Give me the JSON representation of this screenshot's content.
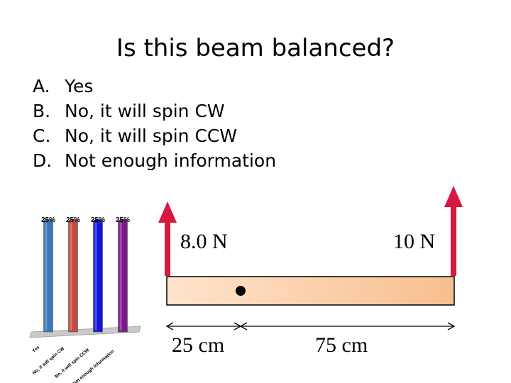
{
  "slide": {
    "title": "Is this beam balanced?",
    "options": [
      {
        "letter": "A.",
        "text": "Yes"
      },
      {
        "letter": "B.",
        "text": "No, it will spin CW"
      },
      {
        "letter": "C.",
        "text": "No, it will spin CCW"
      },
      {
        "letter": "D.",
        "text": "Not enough information"
      }
    ]
  },
  "chart_data": {
    "type": "bar",
    "categories": [
      "Yes",
      "No, it will spin CW",
      "No, it will spin CCW",
      "Not enough information"
    ],
    "values": [
      25,
      25,
      25,
      25
    ],
    "value_labels": [
      "25%",
      "25%",
      "25%",
      "25%"
    ],
    "ylim": [
      0,
      25
    ],
    "colors": [
      "#3a77b7",
      "#c64a42",
      "#1414d8",
      "#7a1a8a"
    ]
  },
  "diagram": {
    "forces": [
      {
        "label": "8.0 N",
        "direction": "up",
        "position": "left"
      },
      {
        "label": "10 N",
        "direction": "up",
        "position": "right"
      }
    ],
    "distances": [
      {
        "label": "25 cm"
      },
      {
        "label": "75 cm"
      }
    ],
    "beam_color": "#f9c9a1",
    "arrow_color": "#d8193f"
  }
}
